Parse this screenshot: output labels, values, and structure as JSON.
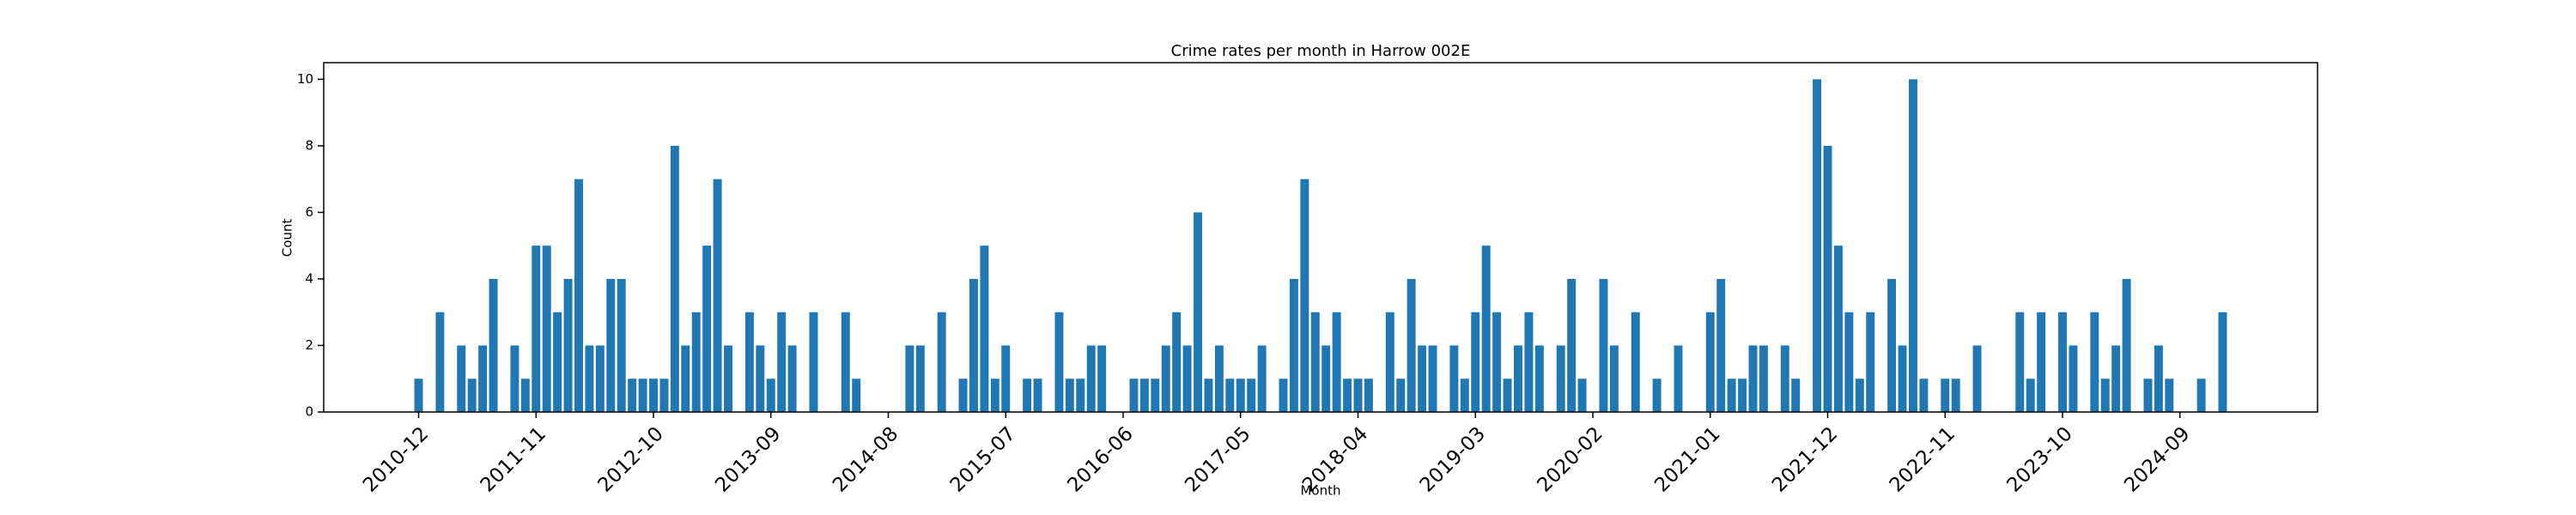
{
  "chart_data": {
    "type": "bar",
    "title": "Crime rates per month in Harrow 002E",
    "xlabel": "Month",
    "ylabel": "Count",
    "color": "#1f77b4",
    "categories": [
      "2010-12",
      "2011-01",
      "2011-02",
      "2011-03",
      "2011-04",
      "2011-05",
      "2011-06",
      "2011-07",
      "2011-08",
      "2011-09",
      "2011-10",
      "2011-11",
      "2011-12",
      "2012-01",
      "2012-02",
      "2012-03",
      "2012-04",
      "2012-05",
      "2012-06",
      "2012-07",
      "2012-08",
      "2012-09",
      "2012-10",
      "2012-11",
      "2012-12",
      "2013-01",
      "2013-02",
      "2013-03",
      "2013-04",
      "2013-05",
      "2013-06",
      "2013-07",
      "2013-08",
      "2013-09",
      "2013-10",
      "2013-11",
      "2013-12",
      "2014-01",
      "2014-02",
      "2014-03",
      "2014-04",
      "2014-05",
      "2014-06",
      "2014-07",
      "2014-08",
      "2014-09",
      "2014-10",
      "2014-11",
      "2014-12",
      "2015-01",
      "2015-02",
      "2015-03",
      "2015-04",
      "2015-05",
      "2015-06",
      "2015-07",
      "2015-08",
      "2015-09",
      "2015-10",
      "2015-11",
      "2015-12",
      "2016-01",
      "2016-02",
      "2016-03",
      "2016-04",
      "2016-05",
      "2016-06",
      "2016-07",
      "2016-08",
      "2016-09",
      "2016-10",
      "2016-11",
      "2016-12",
      "2017-01",
      "2017-02",
      "2017-03",
      "2017-04",
      "2017-05",
      "2017-06",
      "2017-07",
      "2017-08",
      "2017-09",
      "2017-10",
      "2017-11",
      "2017-12",
      "2018-01",
      "2018-02",
      "2018-03",
      "2018-04",
      "2018-05",
      "2018-06",
      "2018-07",
      "2018-08",
      "2018-09",
      "2018-10",
      "2018-11",
      "2018-12",
      "2019-01",
      "2019-02",
      "2019-03",
      "2019-04",
      "2019-05",
      "2019-06",
      "2019-07",
      "2019-08",
      "2019-09",
      "2019-10",
      "2019-11",
      "2019-12",
      "2020-01",
      "2020-02",
      "2020-03",
      "2020-04",
      "2020-05",
      "2020-06",
      "2020-07",
      "2020-08",
      "2020-09",
      "2020-10",
      "2020-11",
      "2020-12",
      "2021-01",
      "2021-02",
      "2021-03",
      "2021-04",
      "2021-05",
      "2021-06",
      "2021-07",
      "2021-08",
      "2021-09",
      "2021-10",
      "2021-11",
      "2021-12",
      "2022-01",
      "2022-02",
      "2022-03",
      "2022-04",
      "2022-05",
      "2022-06",
      "2022-07",
      "2022-08",
      "2022-09",
      "2022-10",
      "2022-11",
      "2022-12",
      "2023-01",
      "2023-02",
      "2023-03",
      "2023-04",
      "2023-05",
      "2023-06",
      "2023-07",
      "2023-08",
      "2023-09",
      "2023-10",
      "2023-11",
      "2023-12",
      "2024-01",
      "2024-02",
      "2024-03",
      "2024-04",
      "2024-05",
      "2024-06",
      "2024-07",
      "2024-08",
      "2024-09",
      "2024-10",
      "2024-11",
      "2024-12",
      "2025-01"
    ],
    "values": [
      1,
      0,
      3,
      0,
      2,
      1,
      2,
      4,
      0,
      2,
      1,
      5,
      5,
      3,
      4,
      7,
      2,
      2,
      4,
      4,
      1,
      1,
      1,
      1,
      8,
      2,
      3,
      5,
      7,
      2,
      0,
      3,
      2,
      1,
      3,
      2,
      0,
      3,
      0,
      0,
      3,
      1,
      0,
      0,
      0,
      0,
      2,
      2,
      0,
      3,
      0,
      1,
      4,
      5,
      1,
      2,
      0,
      1,
      1,
      0,
      3,
      1,
      1,
      2,
      2,
      0,
      0,
      1,
      1,
      1,
      2,
      3,
      2,
      6,
      1,
      2,
      1,
      1,
      1,
      2,
      0,
      1,
      4,
      7,
      3,
      2,
      3,
      1,
      1,
      1,
      0,
      3,
      1,
      4,
      2,
      2,
      0,
      2,
      1,
      3,
      5,
      3,
      1,
      2,
      3,
      2,
      0,
      2,
      4,
      1,
      0,
      4,
      2,
      0,
      3,
      0,
      1,
      0,
      2,
      0,
      0,
      3,
      4,
      1,
      1,
      2,
      2,
      0,
      2,
      1,
      0,
      10,
      8,
      5,
      3,
      1,
      3,
      0,
      4,
      2,
      10,
      1,
      0,
      1,
      1,
      0,
      2,
      0,
      0,
      0,
      3,
      1,
      3,
      0,
      3,
      2,
      0,
      3,
      1,
      2,
      4,
      0,
      1,
      2,
      1,
      0,
      0,
      1,
      0,
      3
    ],
    "xticks": [
      "2010-12",
      "2011-11",
      "2012-10",
      "2013-09",
      "2014-08",
      "2015-07",
      "2016-06",
      "2017-05",
      "2018-04",
      "2019-03",
      "2020-02",
      "2021-01",
      "2021-12",
      "2022-11",
      "2023-10",
      "2024-09"
    ],
    "ylim": [
      0,
      10.5
    ],
    "yticks": [
      0,
      2,
      4,
      6,
      8,
      10
    ]
  }
}
